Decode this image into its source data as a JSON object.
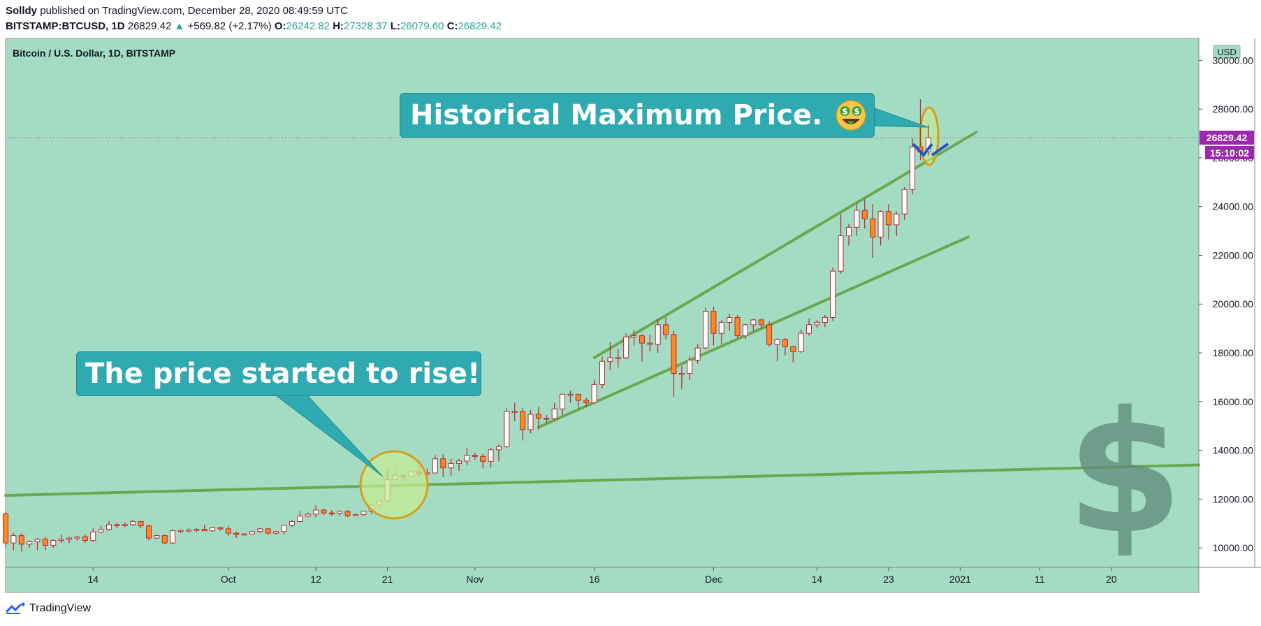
{
  "header": {
    "author": "Solldy",
    "published": "published on TradingView.com, December 28, 2020 08:49:59 UTC",
    "symbol": "BITSTAMP:BTCUSD, 1D",
    "last": "26829.42",
    "change": "+569.82 (+2.17%)",
    "o_label": "O:",
    "o": "26242.82",
    "h_label": "H:",
    "h": "27328.37",
    "l_label": "L:",
    "l": "26079.60",
    "c_label": "C:",
    "c": "26829.42"
  },
  "brand": "TradingView",
  "chart_data": {
    "type": "candlestick",
    "title": "Bitcoin / U.S. Dollar, 1D, BITSTAMP",
    "currency": "USD",
    "last_price_label": "26829.42",
    "countdown_label": "15:10:02",
    "y_ticks": [
      "10000.00",
      "12000.00",
      "14000.00",
      "16000.00",
      "18000.00",
      "20000.00",
      "22000.00",
      "24000.00",
      "26000.00",
      "28000.00",
      "30000.00"
    ],
    "ylim": [
      9200,
      30900
    ],
    "x_ticks": [
      "14",
      "Oct",
      "12",
      "21",
      "Nov",
      "16",
      "Dec",
      "14",
      "23",
      "2021",
      "11",
      "20"
    ],
    "x_tick_dates": [
      "2020-09-14",
      "2020-10-01",
      "2020-10-12",
      "2020-10-21",
      "2020-11-01",
      "2020-11-16",
      "2020-12-01",
      "2020-12-14",
      "2020-12-23",
      "2021-01-01",
      "2021-01-11",
      "2021-01-20"
    ],
    "x_range": [
      "2020-09-03",
      "2021-01-31"
    ],
    "candles": [
      {
        "date": "2020-09-03",
        "o": 11400,
        "h": 11500,
        "l": 10000,
        "c": 10200
      },
      {
        "date": "2020-09-04",
        "o": 10200,
        "h": 10600,
        "l": 9900,
        "c": 10500
      },
      {
        "date": "2020-09-05",
        "o": 10500,
        "h": 10600,
        "l": 9850,
        "c": 10150
      },
      {
        "date": "2020-09-06",
        "o": 10150,
        "h": 10300,
        "l": 10000,
        "c": 10250
      },
      {
        "date": "2020-09-07",
        "o": 10250,
        "h": 10400,
        "l": 9900,
        "c": 10350
      },
      {
        "date": "2020-09-08",
        "o": 10350,
        "h": 10450,
        "l": 9900,
        "c": 10100
      },
      {
        "date": "2020-09-09",
        "o": 10100,
        "h": 10350,
        "l": 10000,
        "c": 10300
      },
      {
        "date": "2020-09-10",
        "o": 10300,
        "h": 10550,
        "l": 10200,
        "c": 10350
      },
      {
        "date": "2020-09-11",
        "o": 10350,
        "h": 10450,
        "l": 10200,
        "c": 10400
      },
      {
        "date": "2020-09-12",
        "o": 10400,
        "h": 10500,
        "l": 10300,
        "c": 10450
      },
      {
        "date": "2020-09-13",
        "o": 10450,
        "h": 10550,
        "l": 10200,
        "c": 10300
      },
      {
        "date": "2020-09-14",
        "o": 10300,
        "h": 10800,
        "l": 10250,
        "c": 10650
      },
      {
        "date": "2020-09-15",
        "o": 10650,
        "h": 10900,
        "l": 10600,
        "c": 10750
      },
      {
        "date": "2020-09-16",
        "o": 10750,
        "h": 11100,
        "l": 10700,
        "c": 10950
      },
      {
        "date": "2020-09-17",
        "o": 10950,
        "h": 11050,
        "l": 10800,
        "c": 10920
      },
      {
        "date": "2020-09-18",
        "o": 10920,
        "h": 11050,
        "l": 10850,
        "c": 10950
      },
      {
        "date": "2020-09-19",
        "o": 10950,
        "h": 11150,
        "l": 10900,
        "c": 11080
      },
      {
        "date": "2020-09-20",
        "o": 11080,
        "h": 11100,
        "l": 10800,
        "c": 10900
      },
      {
        "date": "2020-09-21",
        "o": 10900,
        "h": 10950,
        "l": 10300,
        "c": 10400
      },
      {
        "date": "2020-09-22",
        "o": 10400,
        "h": 10550,
        "l": 10350,
        "c": 10500
      },
      {
        "date": "2020-09-23",
        "o": 10500,
        "h": 10550,
        "l": 10150,
        "c": 10200
      },
      {
        "date": "2020-09-24",
        "o": 10200,
        "h": 10750,
        "l": 10150,
        "c": 10700
      },
      {
        "date": "2020-09-25",
        "o": 10700,
        "h": 10750,
        "l": 10600,
        "c": 10720
      },
      {
        "date": "2020-09-26",
        "o": 10720,
        "h": 10800,
        "l": 10650,
        "c": 10730
      },
      {
        "date": "2020-09-27",
        "o": 10730,
        "h": 10800,
        "l": 10650,
        "c": 10760
      },
      {
        "date": "2020-09-28",
        "o": 10760,
        "h": 10950,
        "l": 10700,
        "c": 10700
      },
      {
        "date": "2020-09-29",
        "o": 10700,
        "h": 10850,
        "l": 10650,
        "c": 10830
      },
      {
        "date": "2020-09-30",
        "o": 10830,
        "h": 10850,
        "l": 10700,
        "c": 10780
      },
      {
        "date": "2020-10-01",
        "o": 10780,
        "h": 10900,
        "l": 10500,
        "c": 10600
      },
      {
        "date": "2020-10-02",
        "o": 10600,
        "h": 10650,
        "l": 10400,
        "c": 10550
      },
      {
        "date": "2020-10-03",
        "o": 10550,
        "h": 10600,
        "l": 10500,
        "c": 10570
      },
      {
        "date": "2020-10-04",
        "o": 10570,
        "h": 10700,
        "l": 10550,
        "c": 10670
      },
      {
        "date": "2020-10-05",
        "o": 10670,
        "h": 10800,
        "l": 10600,
        "c": 10780
      },
      {
        "date": "2020-10-06",
        "o": 10780,
        "h": 10800,
        "l": 10550,
        "c": 10600
      },
      {
        "date": "2020-10-07",
        "o": 10600,
        "h": 10700,
        "l": 10550,
        "c": 10670
      },
      {
        "date": "2020-10-08",
        "o": 10670,
        "h": 10950,
        "l": 10550,
        "c": 10920
      },
      {
        "date": "2020-10-09",
        "o": 10920,
        "h": 11150,
        "l": 10850,
        "c": 11080
      },
      {
        "date": "2020-10-10",
        "o": 11080,
        "h": 11500,
        "l": 11050,
        "c": 11300
      },
      {
        "date": "2020-10-11",
        "o": 11300,
        "h": 11450,
        "l": 11250,
        "c": 11380
      },
      {
        "date": "2020-10-12",
        "o": 11380,
        "h": 11750,
        "l": 11250,
        "c": 11550
      },
      {
        "date": "2020-10-13",
        "o": 11550,
        "h": 11600,
        "l": 11350,
        "c": 11430
      },
      {
        "date": "2020-10-14",
        "o": 11430,
        "h": 11550,
        "l": 11300,
        "c": 11420
      },
      {
        "date": "2020-10-15",
        "o": 11420,
        "h": 11550,
        "l": 11300,
        "c": 11500
      },
      {
        "date": "2020-10-16",
        "o": 11500,
        "h": 11550,
        "l": 11250,
        "c": 11320
      },
      {
        "date": "2020-10-17",
        "o": 11320,
        "h": 11400,
        "l": 11300,
        "c": 11360
      },
      {
        "date": "2020-10-18",
        "o": 11360,
        "h": 11500,
        "l": 11320,
        "c": 11500
      },
      {
        "date": "2020-10-19",
        "o": 11500,
        "h": 11800,
        "l": 11400,
        "c": 11750
      },
      {
        "date": "2020-10-20",
        "o": 11750,
        "h": 12000,
        "l": 11650,
        "c": 11920
      },
      {
        "date": "2020-10-21",
        "o": 11920,
        "h": 13200,
        "l": 11900,
        "c": 12800
      },
      {
        "date": "2020-10-22",
        "o": 12800,
        "h": 13200,
        "l": 12700,
        "c": 12970
      },
      {
        "date": "2020-10-23",
        "o": 12970,
        "h": 13000,
        "l": 12750,
        "c": 12930
      },
      {
        "date": "2020-10-24",
        "o": 12930,
        "h": 13150,
        "l": 12900,
        "c": 13120
      },
      {
        "date": "2020-10-25",
        "o": 13120,
        "h": 13350,
        "l": 12900,
        "c": 13030
      },
      {
        "date": "2020-10-26",
        "o": 13030,
        "h": 13250,
        "l": 12800,
        "c": 13070
      },
      {
        "date": "2020-10-27",
        "o": 13070,
        "h": 13800,
        "l": 13050,
        "c": 13650
      },
      {
        "date": "2020-10-28",
        "o": 13650,
        "h": 13850,
        "l": 12900,
        "c": 13280
      },
      {
        "date": "2020-10-29",
        "o": 13280,
        "h": 13650,
        "l": 12950,
        "c": 13460
      },
      {
        "date": "2020-10-30",
        "o": 13460,
        "h": 13650,
        "l": 13150,
        "c": 13560
      },
      {
        "date": "2020-10-31",
        "o": 13560,
        "h": 14100,
        "l": 13400,
        "c": 13800
      },
      {
        "date": "2020-11-01",
        "o": 13800,
        "h": 13900,
        "l": 13600,
        "c": 13750
      },
      {
        "date": "2020-11-02",
        "o": 13750,
        "h": 13850,
        "l": 13250,
        "c": 13550
      },
      {
        "date": "2020-11-03",
        "o": 13550,
        "h": 14100,
        "l": 13300,
        "c": 14020
      },
      {
        "date": "2020-11-04",
        "o": 14020,
        "h": 14250,
        "l": 13550,
        "c": 14150
      },
      {
        "date": "2020-11-05",
        "o": 14150,
        "h": 15750,
        "l": 14100,
        "c": 15600
      },
      {
        "date": "2020-11-06",
        "o": 15600,
        "h": 15950,
        "l": 15200,
        "c": 15600
      },
      {
        "date": "2020-11-07",
        "o": 15600,
        "h": 15750,
        "l": 14400,
        "c": 14850
      },
      {
        "date": "2020-11-08",
        "o": 14850,
        "h": 15650,
        "l": 14700,
        "c": 15480
      },
      {
        "date": "2020-11-09",
        "o": 15480,
        "h": 15800,
        "l": 14850,
        "c": 15320
      },
      {
        "date": "2020-11-10",
        "o": 15320,
        "h": 15450,
        "l": 15100,
        "c": 15300
      },
      {
        "date": "2020-11-11",
        "o": 15300,
        "h": 15950,
        "l": 15250,
        "c": 15700
      },
      {
        "date": "2020-11-12",
        "o": 15700,
        "h": 16300,
        "l": 15450,
        "c": 16300
      },
      {
        "date": "2020-11-13",
        "o": 16300,
        "h": 16450,
        "l": 15950,
        "c": 16300
      },
      {
        "date": "2020-11-14",
        "o": 16300,
        "h": 16300,
        "l": 15700,
        "c": 16050
      },
      {
        "date": "2020-11-15",
        "o": 16050,
        "h": 16150,
        "l": 15800,
        "c": 15950
      },
      {
        "date": "2020-11-16",
        "o": 15950,
        "h": 16900,
        "l": 15900,
        "c": 16700
      },
      {
        "date": "2020-11-17",
        "o": 16700,
        "h": 17850,
        "l": 16550,
        "c": 17650
      },
      {
        "date": "2020-11-18",
        "o": 17650,
        "h": 18450,
        "l": 17300,
        "c": 17800
      },
      {
        "date": "2020-11-19",
        "o": 17800,
        "h": 18150,
        "l": 17400,
        "c": 17800
      },
      {
        "date": "2020-11-20",
        "o": 17800,
        "h": 18800,
        "l": 17750,
        "c": 18650
      },
      {
        "date": "2020-11-21",
        "o": 18650,
        "h": 18950,
        "l": 18300,
        "c": 18700
      },
      {
        "date": "2020-11-22",
        "o": 18700,
        "h": 18750,
        "l": 17650,
        "c": 18400
      },
      {
        "date": "2020-11-23",
        "o": 18400,
        "h": 18750,
        "l": 18050,
        "c": 18350
      },
      {
        "date": "2020-11-24",
        "o": 18350,
        "h": 19400,
        "l": 18000,
        "c": 19150
      },
      {
        "date": "2020-11-25",
        "o": 19150,
        "h": 19450,
        "l": 18550,
        "c": 18750
      },
      {
        "date": "2020-11-26",
        "o": 18750,
        "h": 18900,
        "l": 16200,
        "c": 17150
      },
      {
        "date": "2020-11-27",
        "o": 17150,
        "h": 17450,
        "l": 16500,
        "c": 17150
      },
      {
        "date": "2020-11-28",
        "o": 17150,
        "h": 17850,
        "l": 16900,
        "c": 17700
      },
      {
        "date": "2020-11-29",
        "o": 17700,
        "h": 18350,
        "l": 17550,
        "c": 18200
      },
      {
        "date": "2020-11-30",
        "o": 18200,
        "h": 19850,
        "l": 18150,
        "c": 19700
      },
      {
        "date": "2020-12-01",
        "o": 19700,
        "h": 19900,
        "l": 18300,
        "c": 18800
      },
      {
        "date": "2020-12-02",
        "o": 18800,
        "h": 19350,
        "l": 18350,
        "c": 19250
      },
      {
        "date": "2020-12-03",
        "o": 19250,
        "h": 19600,
        "l": 18900,
        "c": 19450
      },
      {
        "date": "2020-12-04",
        "o": 19450,
        "h": 19550,
        "l": 18600,
        "c": 18700
      },
      {
        "date": "2020-12-05",
        "o": 18700,
        "h": 19200,
        "l": 18550,
        "c": 19150
      },
      {
        "date": "2020-12-06",
        "o": 19150,
        "h": 19400,
        "l": 18900,
        "c": 19350
      },
      {
        "date": "2020-12-07",
        "o": 19350,
        "h": 19400,
        "l": 18950,
        "c": 19150
      },
      {
        "date": "2020-12-08",
        "o": 19150,
        "h": 19300,
        "l": 18250,
        "c": 18350
      },
      {
        "date": "2020-12-09",
        "o": 18350,
        "h": 18600,
        "l": 17650,
        "c": 18550
      },
      {
        "date": "2020-12-10",
        "o": 18550,
        "h": 18600,
        "l": 17900,
        "c": 18250
      },
      {
        "date": "2020-12-11",
        "o": 18250,
        "h": 18300,
        "l": 17600,
        "c": 18050
      },
      {
        "date": "2020-12-12",
        "o": 18050,
        "h": 18950,
        "l": 18000,
        "c": 18800
      },
      {
        "date": "2020-12-13",
        "o": 18800,
        "h": 19400,
        "l": 18700,
        "c": 19150
      },
      {
        "date": "2020-12-14",
        "o": 19150,
        "h": 19350,
        "l": 19000,
        "c": 19250
      },
      {
        "date": "2020-12-15",
        "o": 19250,
        "h": 19550,
        "l": 19050,
        "c": 19450
      },
      {
        "date": "2020-12-16",
        "o": 19450,
        "h": 21500,
        "l": 19300,
        "c": 21350
      },
      {
        "date": "2020-12-17",
        "o": 21350,
        "h": 23700,
        "l": 21250,
        "c": 22800
      },
      {
        "date": "2020-12-18",
        "o": 22800,
        "h": 23300,
        "l": 22400,
        "c": 23150
      },
      {
        "date": "2020-12-19",
        "o": 23150,
        "h": 24150,
        "l": 22800,
        "c": 23850
      },
      {
        "date": "2020-12-20",
        "o": 23850,
        "h": 24300,
        "l": 23100,
        "c": 23500
      },
      {
        "date": "2020-12-21",
        "o": 23500,
        "h": 24100,
        "l": 21900,
        "c": 22750
      },
      {
        "date": "2020-12-22",
        "o": 22750,
        "h": 23850,
        "l": 22400,
        "c": 23800
      },
      {
        "date": "2020-12-23",
        "o": 23800,
        "h": 24100,
        "l": 22650,
        "c": 23250
      },
      {
        "date": "2020-12-24",
        "o": 23250,
        "h": 23800,
        "l": 22800,
        "c": 23700
      },
      {
        "date": "2020-12-25",
        "o": 23700,
        "h": 24800,
        "l": 23450,
        "c": 24700
      },
      {
        "date": "2020-12-26",
        "o": 24700,
        "h": 26800,
        "l": 24500,
        "c": 26450
      },
      {
        "date": "2020-12-27",
        "o": 26450,
        "h": 28400,
        "l": 25900,
        "c": 26250
      },
      {
        "date": "2020-12-28",
        "o": 26250,
        "h": 27350,
        "l": 26100,
        "c": 26830
      }
    ],
    "trendlines": [
      {
        "from": {
          "date": "2020-09-03",
          "y": 12150
        },
        "to": {
          "date": "2021-01-31",
          "y": 13400
        }
      },
      {
        "from": {
          "date": "2020-11-16",
          "y": 17800
        },
        "to": {
          "date": "2021-01-03",
          "y": 27050
        }
      },
      {
        "from": {
          "date": "2020-11-09",
          "y": 14950
        },
        "to": {
          "date": "2021-01-02",
          "y": 22750
        }
      }
    ],
    "annotations": {
      "top": "Historical Maximum Price.",
      "low": "The price started to rise!"
    },
    "colors": {
      "background": "#a3dcc3",
      "up_body": "#ffffff",
      "down_body": "#ff8a1f",
      "wick": "#b22833",
      "trendline": "#6aa84f",
      "callout": "#2eaab0",
      "price_tag": "#9c27b0",
      "circle_fill": "#c6eb96",
      "circle_stroke": "#d4a017"
    }
  }
}
